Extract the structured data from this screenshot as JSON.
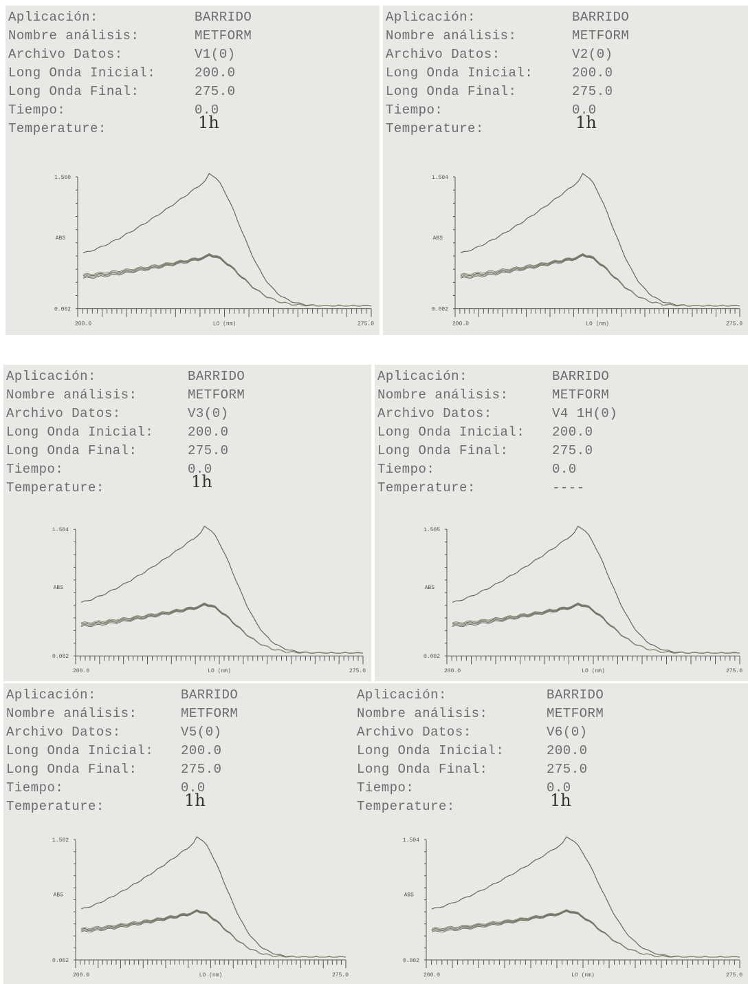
{
  "panels": [
    {
      "fields": [
        {
          "label": "Aplicación:",
          "value": "BARRIDO"
        },
        {
          "label": "Nombre análisis:",
          "value": "METFORM"
        },
        {
          "label": "Archivo Datos:",
          "value": "V1(0)"
        },
        {
          "label": "Long Onda Inicial:",
          "value": "200.0"
        },
        {
          "label": "Long Onda Final:",
          "value": "275.0"
        },
        {
          "label": "Tiempo:",
          "value": "0.0"
        },
        {
          "label": "Temperature:",
          "value": "1h"
        }
      ],
      "plot": {
        "y_top": "1.500",
        "y_mid": "ABS",
        "y_bottom": "0.002",
        "x_left": "200.0",
        "x_mid": "LO (nm)",
        "x_right": "275.0"
      }
    },
    {
      "fields": [
        {
          "label": "Aplicación:",
          "value": "BARRIDO"
        },
        {
          "label": "Nombre análisis:",
          "value": "METFORM"
        },
        {
          "label": "Archivo Datos:",
          "value": "V2(0)"
        },
        {
          "label": "Long Onda Inicial:",
          "value": "200.0"
        },
        {
          "label": "Long Onda Final:",
          "value": "275.0"
        },
        {
          "label": "Tiempo:",
          "value": "0.0"
        },
        {
          "label": "Temperature:",
          "value": "1h"
        }
      ],
      "plot": {
        "y_top": "1.504",
        "y_mid": "ABS",
        "y_bottom": "0.002",
        "x_left": "200.0",
        "x_mid": "LO (nm)",
        "x_right": "275.0"
      }
    },
    {
      "fields": [
        {
          "label": "Aplicación:",
          "value": "BARRIDO"
        },
        {
          "label": "Nombre análisis:",
          "value": "METFORM"
        },
        {
          "label": "Archivo Datos:",
          "value": "V3(0)"
        },
        {
          "label": "Long Onda Inicial:",
          "value": "200.0"
        },
        {
          "label": "Long Onda Final:",
          "value": "275.0"
        },
        {
          "label": "Tiempo:",
          "value": "0.0"
        },
        {
          "label": "Temperature:",
          "value": "1h"
        }
      ],
      "plot": {
        "y_top": "1.504",
        "y_mid": "ABS",
        "y_bottom": "0.002",
        "x_left": "200.0",
        "x_mid": "LO (nm)",
        "x_right": "275.0"
      }
    },
    {
      "fields": [
        {
          "label": "Aplicación:",
          "value": "BARRIDO"
        },
        {
          "label": "Nombre análisis:",
          "value": "METFORM"
        },
        {
          "label": "Archivo Datos:",
          "value": "V4 1H(0)"
        },
        {
          "label": "Long Onda Inicial:",
          "value": "200.0"
        },
        {
          "label": "Long Onda Final:",
          "value": "275.0"
        },
        {
          "label": "Tiempo:",
          "value": "0.0"
        },
        {
          "label": "Temperature:",
          "value": "----"
        }
      ],
      "plot": {
        "y_top": "1.505",
        "y_mid": "ABS",
        "y_bottom": "0.002",
        "x_left": "200.0",
        "x_mid": "LO (nm)",
        "x_right": "275.0"
      }
    },
    {
      "fields": [
        {
          "label": "Aplicación:",
          "value": "BARRIDO"
        },
        {
          "label": "Nombre análisis:",
          "value": "METFORM"
        },
        {
          "label": "Archivo Datos:",
          "value": "V5(0)"
        },
        {
          "label": "Long Onda Inicial:",
          "value": "200.0"
        },
        {
          "label": "Long Onda Final:",
          "value": "275.0"
        },
        {
          "label": "Tiempo:",
          "value": "0.0"
        },
        {
          "label": "Temperature:",
          "value": "1h"
        }
      ],
      "plot": {
        "y_top": "1.502",
        "y_mid": "ABS",
        "y_bottom": "0.002",
        "x_left": "200.0",
        "x_mid": "LO (nm)",
        "x_right": "275.0"
      }
    },
    {
      "fields": [
        {
          "label": "Aplicación:",
          "value": "BARRIDO"
        },
        {
          "label": "Nombre análisis:",
          "value": "METFORM"
        },
        {
          "label": "Archivo Datos:",
          "value": "V6(0)"
        },
        {
          "label": "Long Onda Inicial:",
          "value": "200.0"
        },
        {
          "label": "Long Onda Final:",
          "value": "275.0"
        },
        {
          "label": "Tiempo:",
          "value": "0.0"
        },
        {
          "label": "Temperature:",
          "value": "1h"
        }
      ],
      "plot": {
        "y_top": "1.504",
        "y_mid": "ABS",
        "y_bottom": "0.002",
        "x_left": "200.0",
        "x_mid": "LO (nm)",
        "x_right": "275.0"
      }
    }
  ]
}
